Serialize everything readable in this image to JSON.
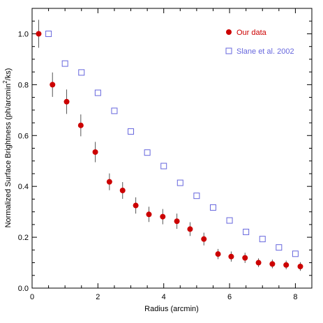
{
  "colors": {
    "our_data": "#cc0000",
    "slane": "#6666dd",
    "error_bar": "#555555",
    "axis": "#000000"
  },
  "chart_data": {
    "type": "scatter",
    "xlabel": "Radius (arcmin)",
    "ylabel_main": "Normalized Surface Brightness (ph/arcmin",
    "ylabel_sup": "2",
    "ylabel_tail": "/ks)",
    "xlim": [
      0,
      8.5
    ],
    "ylim": [
      0,
      1.1
    ],
    "x_ticks": [
      "0",
      "2",
      "4",
      "6",
      "8"
    ],
    "y_ticks": [
      "0.0",
      "0.2",
      "0.4",
      "0.6",
      "0.8",
      "1.0"
    ],
    "grid": false,
    "legend_position": "top-right",
    "series": [
      {
        "name": "Our data",
        "marker": "filled-circle",
        "color": "#cc0000",
        "points": [
          {
            "x": 0.2,
            "y": 1.0,
            "err": 0.055
          },
          {
            "x": 0.62,
            "y": 0.8,
            "err": 0.048
          },
          {
            "x": 1.05,
            "y": 0.733,
            "err": 0.048
          },
          {
            "x": 1.48,
            "y": 0.64,
            "err": 0.043
          },
          {
            "x": 1.92,
            "y": 0.535,
            "err": 0.04
          },
          {
            "x": 2.35,
            "y": 0.418,
            "err": 0.033
          },
          {
            "x": 2.75,
            "y": 0.384,
            "err": 0.033
          },
          {
            "x": 3.15,
            "y": 0.325,
            "err": 0.032
          },
          {
            "x": 3.55,
            "y": 0.29,
            "err": 0.03
          },
          {
            "x": 3.97,
            "y": 0.281,
            "err": 0.03
          },
          {
            "x": 4.4,
            "y": 0.263,
            "err": 0.03
          },
          {
            "x": 4.8,
            "y": 0.232,
            "err": 0.027
          },
          {
            "x": 5.22,
            "y": 0.193,
            "err": 0.025
          },
          {
            "x": 5.65,
            "y": 0.134,
            "err": 0.02
          },
          {
            "x": 6.05,
            "y": 0.124,
            "err": 0.02
          },
          {
            "x": 6.47,
            "y": 0.119,
            "err": 0.02
          },
          {
            "x": 6.88,
            "y": 0.1,
            "err": 0.017
          },
          {
            "x": 7.3,
            "y": 0.095,
            "err": 0.017
          },
          {
            "x": 7.72,
            "y": 0.091,
            "err": 0.017
          },
          {
            "x": 8.15,
            "y": 0.085,
            "err": 0.017
          }
        ]
      },
      {
        "name": "Slane et al. 2002",
        "marker": "open-square",
        "color": "#6666dd",
        "points": [
          {
            "x": 0.5,
            "y": 1.0
          },
          {
            "x": 1.0,
            "y": 0.883
          },
          {
            "x": 1.5,
            "y": 0.848
          },
          {
            "x": 2.0,
            "y": 0.768
          },
          {
            "x": 2.5,
            "y": 0.697
          },
          {
            "x": 3.0,
            "y": 0.616
          },
          {
            "x": 3.5,
            "y": 0.533
          },
          {
            "x": 4.0,
            "y": 0.48
          },
          {
            "x": 4.5,
            "y": 0.414
          },
          {
            "x": 5.0,
            "y": 0.363
          },
          {
            "x": 5.5,
            "y": 0.317
          },
          {
            "x": 6.0,
            "y": 0.266
          },
          {
            "x": 6.5,
            "y": 0.221
          },
          {
            "x": 7.0,
            "y": 0.193
          },
          {
            "x": 7.5,
            "y": 0.16
          },
          {
            "x": 8.0,
            "y": 0.135
          }
        ]
      }
    ]
  }
}
